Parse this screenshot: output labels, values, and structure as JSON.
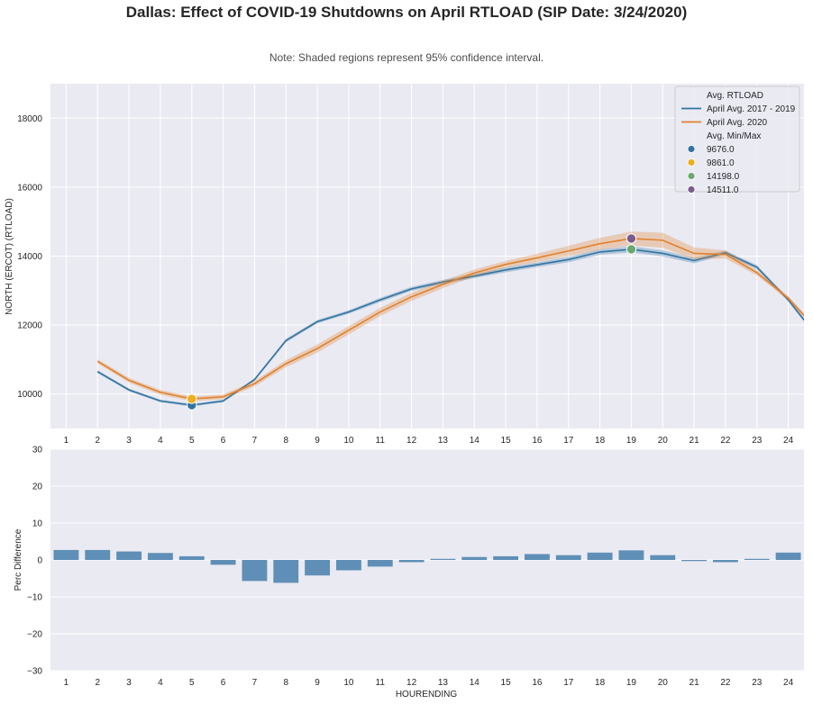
{
  "title": "Dallas: Effect of COVID-19 Shutdowns on April RTLOAD (SIP Date: 3/24/2020)",
  "subtitle": "Note: Shaded regions represent 95% confidence interval.",
  "colors": {
    "background": "#eaeaf2",
    "grid": "#ffffff",
    "series_2017_2019": "#3274a1",
    "series_2020": "#e1812c",
    "bar": "#5f8fb6",
    "marker_9676": "#3274a1",
    "marker_9861": "#f0ad1c",
    "marker_14198": "#6aa870",
    "marker_14511": "#7b5b8a"
  },
  "chart_data": [
    {
      "type": "line",
      "ylabel": "NORTH (ERCOT) (RTLOAD)",
      "xlabel": "",
      "x": [
        1,
        2,
        3,
        4,
        5,
        6,
        7,
        8,
        9,
        10,
        11,
        12,
        13,
        14,
        15,
        16,
        17,
        18,
        19,
        20,
        21,
        22,
        23,
        24
      ],
      "xlim": [
        0.5,
        24.5
      ],
      "ylim": [
        9000,
        19000
      ],
      "yticks": [
        10000,
        12000,
        14000,
        16000,
        18000
      ],
      "grid": true,
      "legend_position": "top-right",
      "legend": {
        "line_header": "Avg. RTLOAD",
        "marker_header": "Avg. Min/Max"
      },
      "series": [
        {
          "name": "April Avg. 2017 - 2019",
          "x": [
            2,
            3,
            4,
            5,
            6,
            7,
            8,
            9,
            10,
            11,
            12,
            13,
            14,
            15,
            16,
            17,
            18,
            19,
            20,
            21,
            22,
            23,
            24,
            24.5
          ],
          "values": [
            10650,
            10120,
            9800,
            9676,
            9800,
            10420,
            11550,
            12100,
            12380,
            12730,
            13050,
            13250,
            13420,
            13600,
            13750,
            13900,
            14120,
            14198,
            14080,
            13870,
            14100,
            13680,
            12730,
            12150
          ],
          "ci": [
            40,
            40,
            40,
            40,
            40,
            40,
            50,
            50,
            50,
            60,
            60,
            60,
            60,
            70,
            70,
            80,
            80,
            90,
            90,
            80,
            60,
            60,
            50,
            50
          ]
        },
        {
          "name": "April Avg. 2020",
          "x": [
            2,
            3,
            4,
            5,
            6,
            7,
            8,
            9,
            10,
            11,
            12,
            13,
            14,
            15,
            16,
            17,
            18,
            19,
            20,
            21,
            22,
            23,
            24,
            24.5
          ],
          "values": [
            10950,
            10400,
            10050,
            9861,
            9920,
            10300,
            10880,
            11320,
            11850,
            12380,
            12820,
            13180,
            13510,
            13760,
            13950,
            14150,
            14360,
            14511,
            14460,
            14080,
            14050,
            13520,
            12780,
            12280
          ],
          "ci": [
            60,
            70,
            70,
            70,
            70,
            80,
            100,
            120,
            120,
            120,
            120,
            110,
            100,
            100,
            120,
            150,
            170,
            200,
            220,
            170,
            120,
            80,
            60,
            60
          ]
        }
      ],
      "markers": [
        {
          "label": "9676.0",
          "x": 5,
          "y": 9676,
          "color_key": "marker_9676"
        },
        {
          "label": "9861.0",
          "x": 5,
          "y": 9861,
          "color_key": "marker_9861"
        },
        {
          "label": "14198.0",
          "x": 19,
          "y": 14198,
          "color_key": "marker_14198"
        },
        {
          "label": "14511.0",
          "x": 19,
          "y": 14511,
          "color_key": "marker_14511"
        }
      ]
    },
    {
      "type": "bar",
      "xlabel": "HOURENDING",
      "ylabel": "Perc Difference",
      "categories": [
        "1",
        "2",
        "3",
        "4",
        "5",
        "6",
        "7",
        "8",
        "9",
        "10",
        "11",
        "12",
        "13",
        "14",
        "15",
        "16",
        "17",
        "18",
        "19",
        "20",
        "21",
        "22",
        "23",
        "24"
      ],
      "values": [
        2.7,
        2.7,
        2.3,
        1.9,
        1.0,
        -1.3,
        -5.7,
        -6.2,
        -4.2,
        -2.8,
        -1.8,
        -0.6,
        0.3,
        0.8,
        1.0,
        1.6,
        1.3,
        2.0,
        2.6,
        1.3,
        -0.3,
        -0.6,
        0.3,
        2.0
      ],
      "ylim": [
        -30,
        30
      ],
      "yticks": [
        -30,
        -20,
        -10,
        0,
        10,
        20,
        30
      ],
      "grid": true
    }
  ]
}
